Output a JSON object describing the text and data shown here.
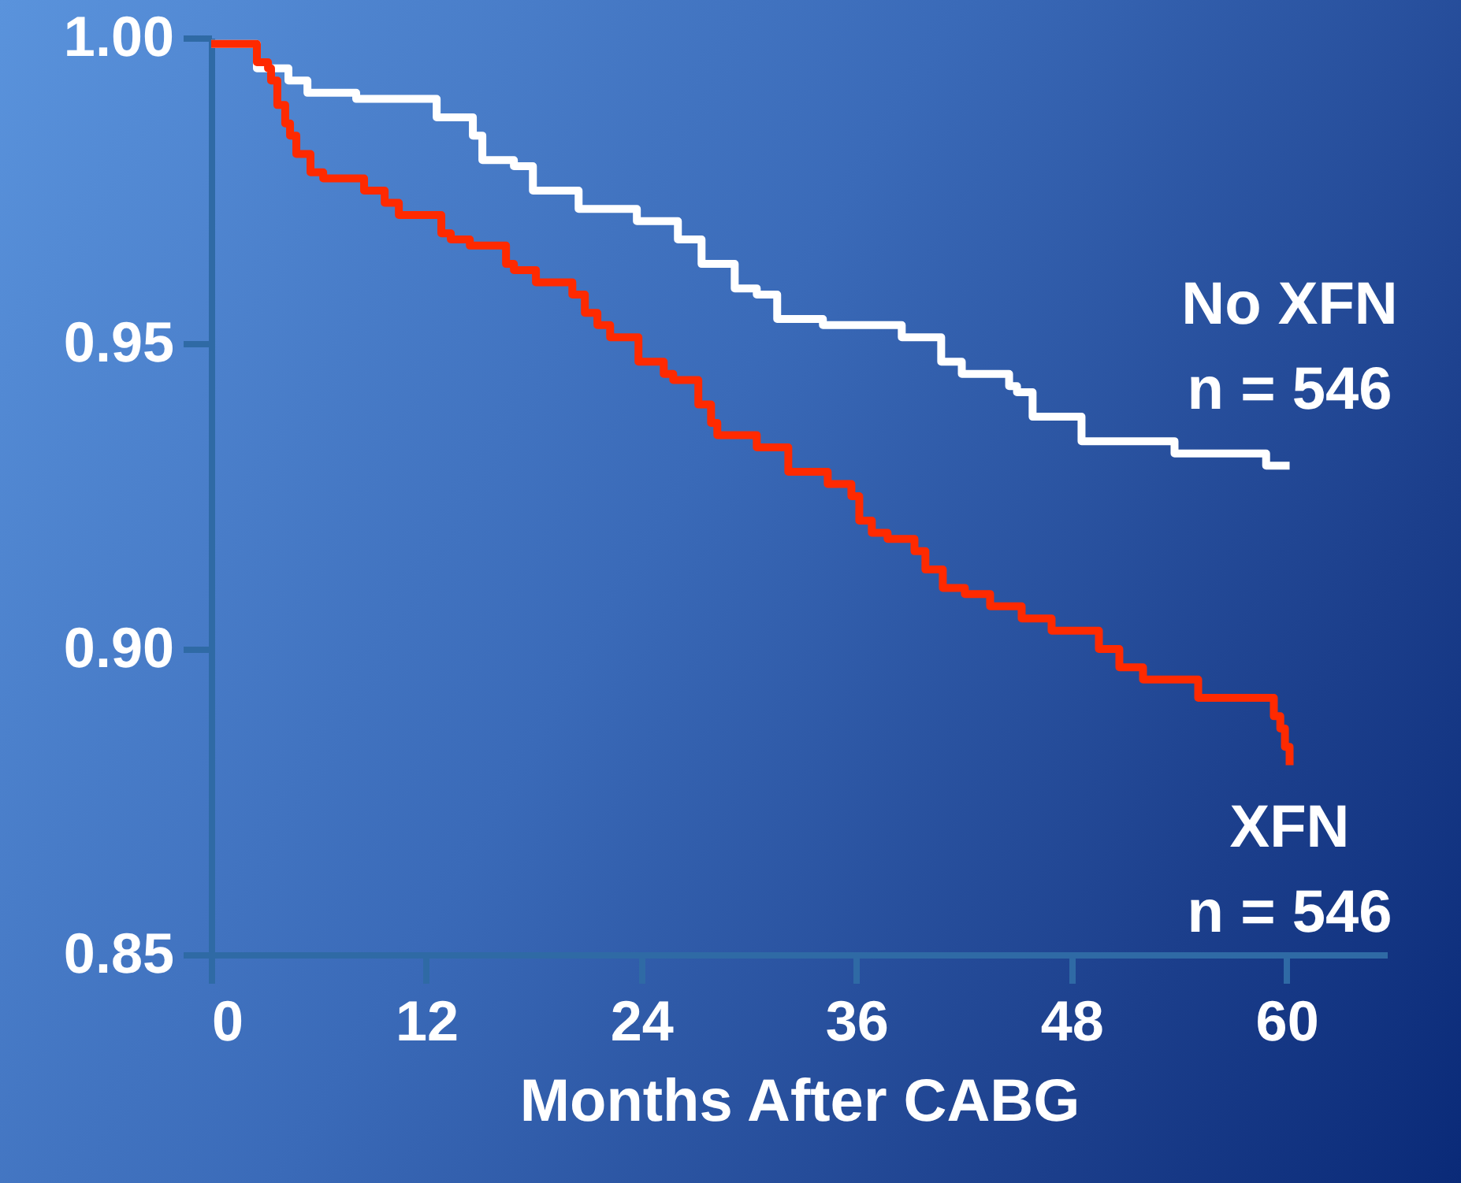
{
  "chart_data": {
    "type": "step",
    "xlabel": "Months After CABG",
    "xlim": [
      0,
      65.6
    ],
    "xticks": [
      0,
      12,
      24,
      36,
      48,
      60
    ],
    "ylim": [
      0.85,
      1.0
    ],
    "yticks": [
      {
        "value": 0.85,
        "label": "0.85"
      },
      {
        "value": 0.9,
        "label": "0.90"
      },
      {
        "value": 0.95,
        "label": "0.95"
      },
      {
        "value": 1.0,
        "label": "1.00"
      }
    ],
    "grid": false,
    "annotations": [
      "n = 546",
      "n = 546"
    ],
    "series": [
      {
        "name": "No XFN",
        "color": "#ffffff",
        "x": [
          0,
          2.55,
          4.31,
          5.37,
          8.09,
          12.58,
          14.6,
          15.13,
          16.89,
          17.95,
          20.5,
          23.75,
          26.04,
          27.36,
          29.21,
          30.44,
          31.58,
          34.13,
          38.53,
          40.73,
          41.88,
          44.52,
          44.96,
          45.83,
          48.56,
          53.75,
          58.86,
          60.17
        ],
        "values": [
          0.999,
          0.995,
          0.993,
          0.991,
          0.99,
          0.987,
          0.984,
          0.98,
          0.979,
          0.975,
          0.972,
          0.97,
          0.967,
          0.963,
          0.959,
          0.958,
          0.954,
          0.953,
          0.951,
          0.947,
          0.945,
          0.943,
          0.942,
          0.938,
          0.934,
          0.932,
          0.93,
          0.93
        ]
      },
      {
        "name": "XFN",
        "color": "#ff2a00",
        "x": [
          0,
          2.55,
          3.17,
          3.34,
          3.69,
          4.13,
          4.4,
          4.75,
          5.54,
          6.25,
          8.53,
          9.68,
          10.47,
          12.84,
          13.37,
          14.43,
          16.45,
          16.89,
          18.12,
          20.15,
          20.85,
          21.55,
          22.26,
          23.84,
          25.25,
          25.78,
          27.18,
          27.89,
          28.24,
          30.44,
          32.2,
          34.4,
          35.72,
          36.16,
          36.86,
          37.74,
          39.24,
          39.85,
          40.82,
          42.05,
          43.46,
          45.22,
          46.89,
          49.53,
          50.67,
          51.99,
          55.07,
          59.29,
          59.65,
          59.91,
          60.17
        ],
        "values": [
          0.999,
          0.996,
          0.995,
          0.993,
          0.989,
          0.986,
          0.984,
          0.981,
          0.978,
          0.977,
          0.975,
          0.973,
          0.971,
          0.968,
          0.967,
          0.966,
          0.963,
          0.962,
          0.96,
          0.958,
          0.955,
          0.953,
          0.951,
          0.947,
          0.945,
          0.944,
          0.94,
          0.937,
          0.935,
          0.933,
          0.929,
          0.927,
          0.925,
          0.921,
          0.919,
          0.918,
          0.916,
          0.913,
          0.91,
          0.909,
          0.907,
          0.905,
          0.903,
          0.9,
          0.897,
          0.895,
          0.892,
          0.889,
          0.887,
          0.884,
          0.881
        ]
      }
    ]
  }
}
